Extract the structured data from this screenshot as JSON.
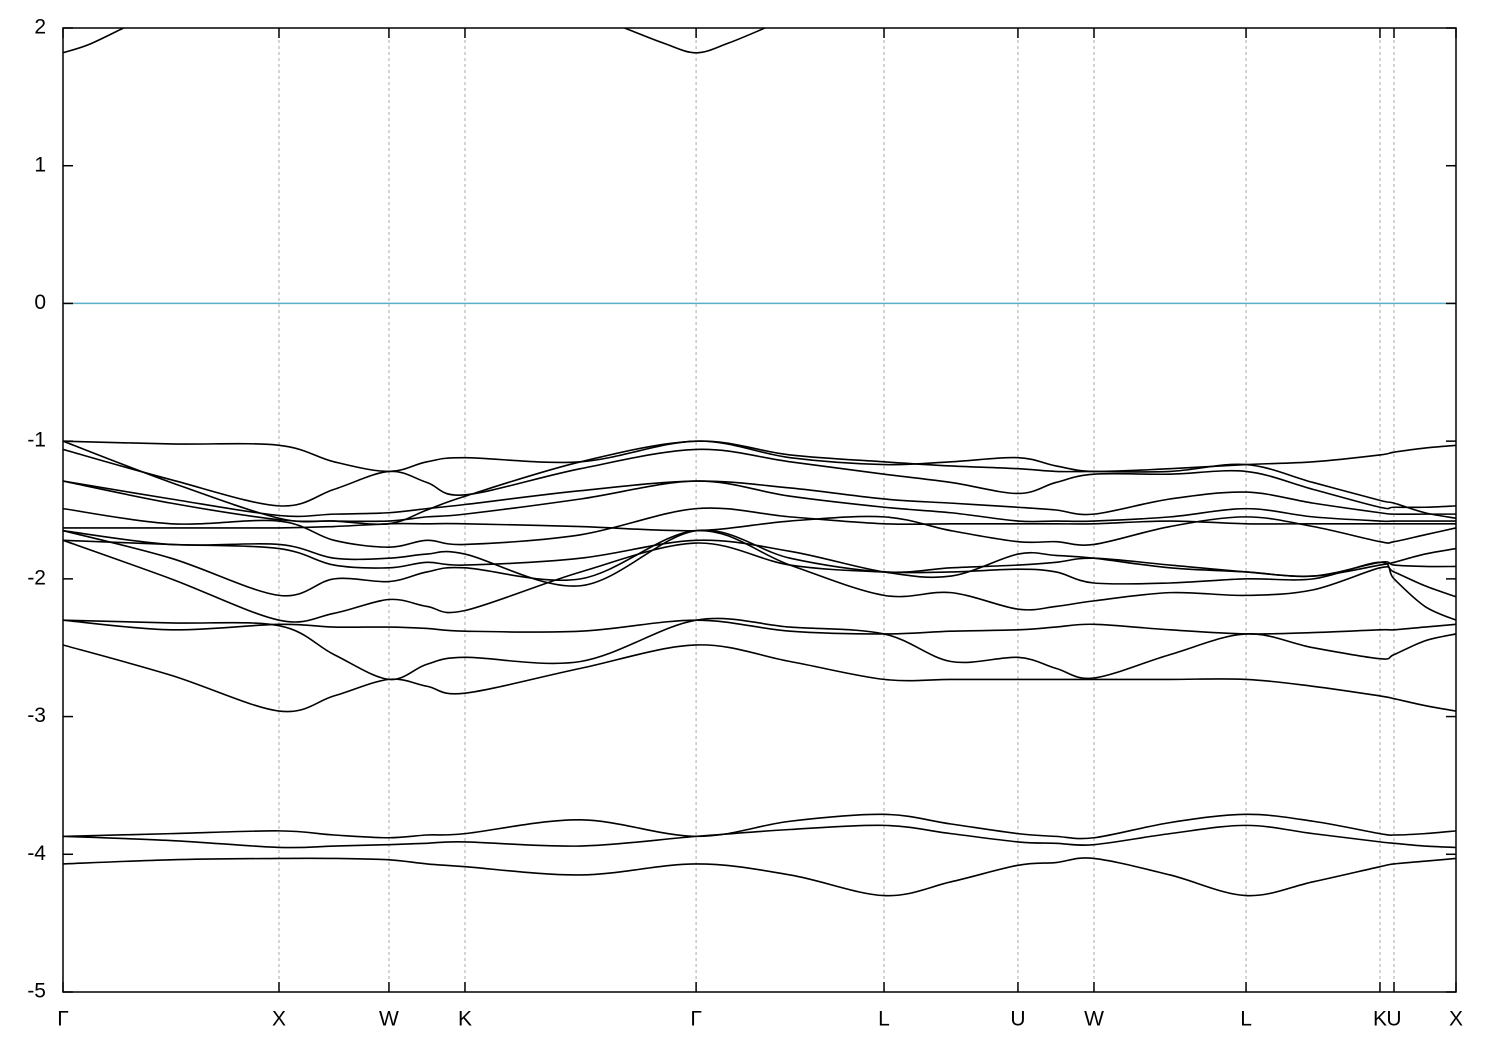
{
  "chart_data": {
    "type": "line",
    "x": [
      0,
      0.5,
      1.0,
      1.255,
      1.509,
      1.685,
      1.861,
      2.396,
      2.931,
      3.366,
      3.801,
      4.111,
      4.421,
      4.597,
      4.773,
      5.125,
      5.477,
      5.787,
      6.097,
      6.162,
      6.305,
      6.449
    ],
    "xlim": [
      0,
      6.449
    ],
    "xticks": [
      {
        "value": 0,
        "label": "Γ"
      },
      {
        "value": 1.0,
        "label": "X"
      },
      {
        "value": 1.509,
        "label": "W"
      },
      {
        "value": 1.861,
        "label": "K"
      },
      {
        "value": 2.931,
        "label": "Γ"
      },
      {
        "value": 3.801,
        "label": "L"
      },
      {
        "value": 4.421,
        "label": "U"
      },
      {
        "value": 4.773,
        "label": "W"
      },
      {
        "value": 5.477,
        "label": "L"
      },
      {
        "value": 6.097,
        "label": "K"
      },
      {
        "value": 6.162,
        "label": "U"
      },
      {
        "value": 6.449,
        "label": "X"
      }
    ],
    "ylim": [
      -5,
      2
    ],
    "yticks": [
      -5,
      -4,
      -3,
      -2,
      -1,
      0,
      1,
      2
    ],
    "grid_x": true,
    "fermi_level": {
      "value": 0,
      "color": "#5aaec9"
    },
    "series": [
      {
        "color": "#000000",
        "values": [
          -4.07,
          -4.04,
          -4.03,
          -4.03,
          -4.04,
          -4.07,
          -4.09,
          -4.15,
          -4.07,
          -4.15,
          -4.3,
          -4.2,
          -4.08,
          -4.06,
          -4.03,
          -4.15,
          -4.3,
          -4.2,
          -4.09,
          -4.07,
          -4.05,
          -4.03
        ]
      },
      {
        "color": "#000000",
        "values": [
          -3.87,
          -3.9,
          -3.95,
          -3.94,
          -3.93,
          -3.92,
          -3.91,
          -3.94,
          -3.87,
          -3.82,
          -3.79,
          -3.85,
          -3.91,
          -3.92,
          -3.93,
          -3.85,
          -3.79,
          -3.85,
          -3.91,
          -3.92,
          -3.94,
          -3.95
        ]
      },
      {
        "color": "#000000",
        "values": [
          -3.87,
          -3.85,
          -3.83,
          -3.86,
          -3.88,
          -3.86,
          -3.85,
          -3.75,
          -3.87,
          -3.76,
          -3.71,
          -3.78,
          -3.85,
          -3.87,
          -3.88,
          -3.77,
          -3.71,
          -3.76,
          -3.85,
          -3.86,
          -3.85,
          -3.83
        ]
      },
      {
        "color": "#000000",
        "values": [
          -2.48,
          -2.7,
          -2.96,
          -2.85,
          -2.73,
          -2.78,
          -2.83,
          -2.65,
          -2.48,
          -2.6,
          -2.73,
          -2.73,
          -2.73,
          -2.73,
          -2.73,
          -2.73,
          -2.73,
          -2.78,
          -2.85,
          -2.87,
          -2.92,
          -2.96
        ]
      },
      {
        "color": "#000000",
        "values": [
          -2.3,
          -2.32,
          -2.34,
          -2.55,
          -2.73,
          -2.62,
          -2.57,
          -2.6,
          -2.3,
          -2.35,
          -2.4,
          -2.6,
          -2.57,
          -2.65,
          -2.72,
          -2.55,
          -2.4,
          -2.5,
          -2.58,
          -2.55,
          -2.45,
          -2.4
        ]
      },
      {
        "color": "#000000",
        "values": [
          -2.3,
          -2.37,
          -2.33,
          -2.35,
          -2.35,
          -2.36,
          -2.38,
          -2.38,
          -2.3,
          -2.38,
          -2.4,
          -2.38,
          -2.37,
          -2.35,
          -2.33,
          -2.37,
          -2.4,
          -2.39,
          -2.37,
          -2.37,
          -2.35,
          -2.33
        ]
      },
      {
        "color": "#000000",
        "values": [
          -1.65,
          -1.85,
          -2.12,
          -2.0,
          -2.02,
          -1.95,
          -1.92,
          -2.0,
          -1.65,
          -1.9,
          -2.12,
          -2.1,
          -2.22,
          -2.2,
          -2.16,
          -2.1,
          -2.12,
          -2.08,
          -1.92,
          -1.95,
          -2.05,
          -2.13
        ]
      },
      {
        "color": "#000000",
        "values": [
          -1.72,
          -2.0,
          -2.3,
          -2.25,
          -2.15,
          -2.2,
          -2.23,
          -1.95,
          -1.74,
          -1.9,
          -1.95,
          -1.95,
          -1.93,
          -1.95,
          -2.03,
          -2.03,
          -2.0,
          -2.0,
          -1.88,
          -2.0,
          -2.2,
          -2.3
        ]
      },
      {
        "color": "#000000",
        "values": [
          -1.65,
          -1.75,
          -1.75,
          -1.85,
          -1.85,
          -1.82,
          -1.82,
          -2.05,
          -1.65,
          -1.85,
          -1.95,
          -1.92,
          -1.9,
          -1.88,
          -1.85,
          -1.9,
          -1.95,
          -1.98,
          -1.9,
          -1.88,
          -1.82,
          -1.78
        ]
      },
      {
        "color": "#000000",
        "values": [
          -1.72,
          -1.75,
          -1.78,
          -1.9,
          -1.92,
          -1.88,
          -1.9,
          -1.85,
          -1.72,
          -1.8,
          -1.95,
          -1.98,
          -1.82,
          -1.83,
          -1.85,
          -1.92,
          -1.95,
          -1.98,
          -1.88,
          -1.9,
          -1.91,
          -1.91
        ]
      },
      {
        "color": "#000000",
        "values": [
          -1.63,
          -1.63,
          -1.63,
          -1.62,
          -1.6,
          -1.6,
          -1.6,
          -1.62,
          -1.65,
          -1.58,
          -1.55,
          -1.65,
          -1.73,
          -1.73,
          -1.75,
          -1.62,
          -1.55,
          -1.62,
          -1.73,
          -1.73,
          -1.68,
          -1.63
        ]
      },
      {
        "color": "#000000",
        "values": [
          -1.49,
          -1.6,
          -1.58,
          -1.72,
          -1.77,
          -1.72,
          -1.75,
          -1.68,
          -1.49,
          -1.55,
          -1.6,
          -1.6,
          -1.6,
          -1.6,
          -1.6,
          -1.58,
          -1.6,
          -1.6,
          -1.6,
          -1.6,
          -1.6,
          -1.6
        ]
      },
      {
        "color": "#000000",
        "values": [
          -1.29,
          -1.45,
          -1.57,
          -1.58,
          -1.58,
          -1.55,
          -1.53,
          -1.42,
          -1.29,
          -1.4,
          -1.48,
          -1.52,
          -1.58,
          -1.58,
          -1.58,
          -1.55,
          -1.49,
          -1.55,
          -1.58,
          -1.58,
          -1.58,
          -1.58
        ]
      },
      {
        "color": "#000000",
        "values": [
          -1.29,
          -1.42,
          -1.54,
          -1.53,
          -1.52,
          -1.49,
          -1.46,
          -1.36,
          -1.29,
          -1.34,
          -1.42,
          -1.45,
          -1.48,
          -1.5,
          -1.53,
          -1.42,
          -1.37,
          -1.45,
          -1.52,
          -1.53,
          -1.53,
          -1.53
        ]
      },
      {
        "color": "#000000",
        "values": [
          -1.06,
          -1.28,
          -1.47,
          -1.35,
          -1.22,
          -1.3,
          -1.39,
          -1.2,
          -1.06,
          -1.15,
          -1.24,
          -1.3,
          -1.38,
          -1.3,
          -1.24,
          -1.24,
          -1.22,
          -1.35,
          -1.48,
          -1.48,
          -1.48,
          -1.47
        ]
      },
      {
        "color": "#000000",
        "values": [
          -1.0,
          -1.02,
          -1.03,
          -1.15,
          -1.22,
          -1.15,
          -1.12,
          -1.15,
          -1.0,
          -1.12,
          -1.17,
          -1.15,
          -1.12,
          -1.18,
          -1.22,
          -1.2,
          -1.17,
          -1.15,
          -1.1,
          -1.08,
          -1.05,
          -1.03
        ]
      },
      {
        "color": "#000000",
        "values": [
          -1.0,
          -1.3,
          -1.56,
          -1.58,
          -1.6,
          -1.5,
          -1.4,
          -1.15,
          -1.0,
          -1.1,
          -1.15,
          -1.18,
          -1.2,
          -1.22,
          -1.22,
          -1.22,
          -1.17,
          -1.3,
          -1.43,
          -1.45,
          -1.52,
          -1.56
        ]
      },
      {
        "color": "#000000",
        "x": [
          0,
          0.12,
          0.28
        ],
        "values": [
          1.82,
          1.88,
          2.0
        ]
      },
      {
        "color": "#000000",
        "x": [
          2.6,
          2.78,
          2.931,
          3.08,
          3.25
        ],
        "values": [
          2.0,
          1.89,
          1.82,
          1.89,
          2.0
        ]
      }
    ]
  }
}
